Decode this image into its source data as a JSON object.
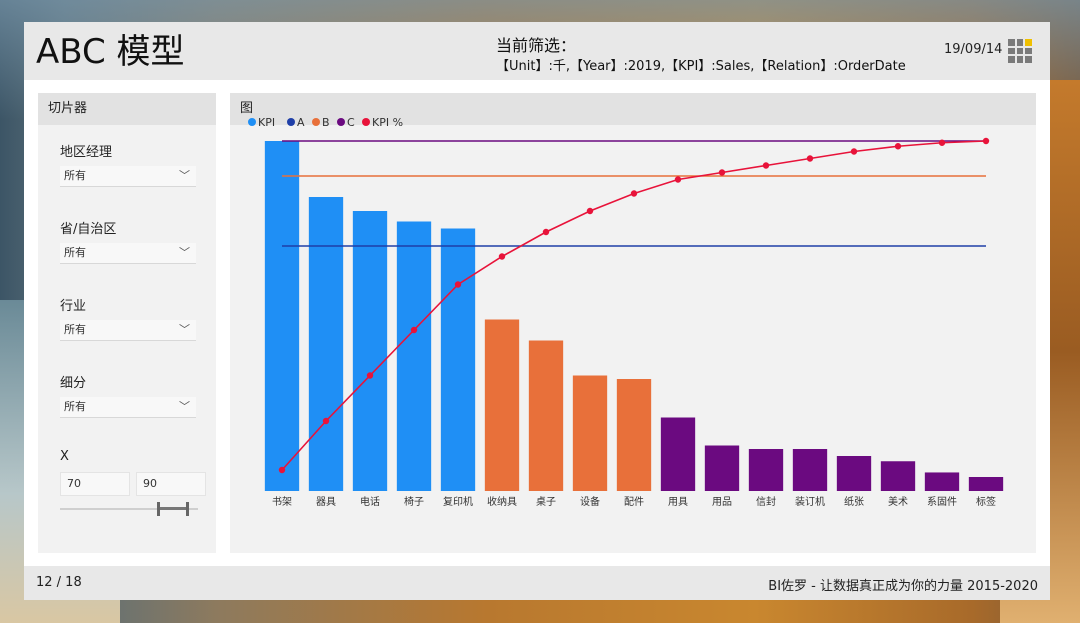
{
  "header": {
    "title": "ABC 模型",
    "filter_label": "当前筛选：",
    "filter_text": "【Unit】:千,【Year】:2019,【KPI】:Sales,【Relation】:OrderDate",
    "date": "19/09/14"
  },
  "slicer": {
    "title": "切片器",
    "fields": [
      {
        "label": "地区经理",
        "value": "所有"
      },
      {
        "label": "省/自治区",
        "value": "所有"
      },
      {
        "label": "行业",
        "value": "所有"
      },
      {
        "label": "细分",
        "value": "所有"
      }
    ],
    "x_label": "X",
    "x_min": "70",
    "x_max": "90"
  },
  "chart_panel": {
    "title": "图"
  },
  "footer": {
    "page": "12 / 18",
    "credit": "BI佐罗 - 让数据真正成为你的力量 2015-2020"
  },
  "colors": {
    "kpi": "#1f8ff5",
    "A": "#1f3fa8",
    "B": "#e8703a",
    "C": "#6b0a80",
    "kpi_pct": "#e8133a"
  },
  "chart_data": {
    "type": "bar",
    "legend": [
      "KPI",
      "A",
      "B",
      "C",
      "KPI %"
    ],
    "categories": [
      "书架",
      "器具",
      "电话",
      "椅子",
      "复印机",
      "收纳具",
      "桌子",
      "设备",
      "配件",
      "用具",
      "用品",
      "信封",
      "装订机",
      "纸张",
      "美术",
      "系固件",
      "标签"
    ],
    "series": [
      {
        "name": "KPI",
        "values": [
          100,
          84,
          80,
          77,
          75,
          49,
          43,
          33,
          32,
          21,
          13,
          12,
          12,
          10,
          8.5,
          5.3,
          4
        ]
      },
      {
        "name": "KPI %",
        "values": [
          6,
          20,
          33,
          46,
          59,
          67,
          74,
          80,
          85,
          89,
          91,
          93,
          95,
          97,
          98.5,
          99.5,
          100
        ]
      }
    ],
    "thresholds": [
      {
        "name": "A",
        "value": 70
      },
      {
        "name": "B",
        "value": 90
      },
      {
        "name": "C",
        "value": 100
      }
    ],
    "class": [
      "A",
      "A",
      "A",
      "A",
      "A",
      "B",
      "B",
      "B",
      "B",
      "C",
      "C",
      "C",
      "C",
      "C",
      "C",
      "C",
      "C"
    ],
    "legend_position": "top-left"
  }
}
